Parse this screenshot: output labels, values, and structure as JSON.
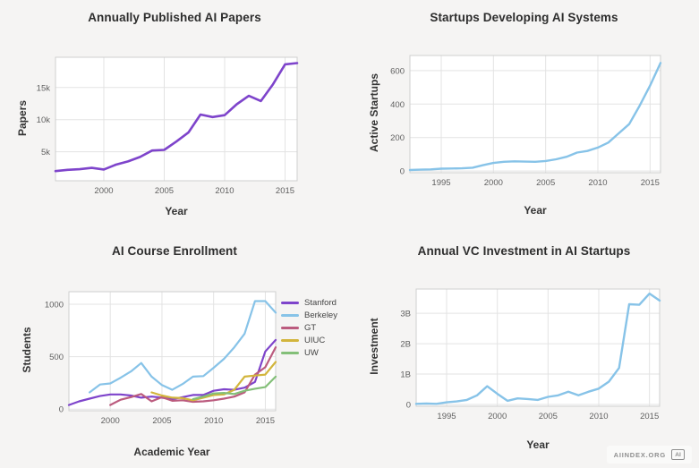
{
  "footer": {
    "watermark": "AIINDEX.ORG",
    "logo": "AI"
  },
  "chart_data": [
    {
      "id": "papers",
      "type": "line",
      "title": "Annually Published AI Papers",
      "xlabel": "Year",
      "ylabel": "Papers",
      "xlim": [
        1996,
        2016
      ],
      "ylim": [
        500,
        19700
      ],
      "grid": true,
      "legend": false,
      "xticks": [
        2000,
        2005,
        2010,
        2015
      ],
      "yticks": [
        5000,
        10000,
        15000
      ],
      "ytick_labels": [
        "5k",
        "10k",
        "15k"
      ],
      "series": [
        {
          "name": "AI Papers",
          "color": "#7e44cb",
          "x_start": 1996,
          "values": [
            2000,
            2200,
            2300,
            2500,
            2250,
            3000,
            3500,
            4200,
            5200,
            5300,
            6600,
            8000,
            10800,
            10400,
            10700,
            12400,
            13700,
            12900,
            15500,
            18600,
            18800
          ]
        }
      ]
    },
    {
      "id": "startups",
      "type": "line",
      "title": "Startups Developing AI Systems",
      "xlabel": "Year",
      "ylabel": "Active Startups",
      "xlim": [
        1992,
        2016
      ],
      "ylim": [
        -10,
        690
      ],
      "grid": true,
      "legend": false,
      "xticks": [
        1995,
        2000,
        2005,
        2010,
        2015
      ],
      "yticks": [
        0,
        200,
        400,
        600
      ],
      "ytick_labels": [
        "0",
        "200",
        "400",
        "600"
      ],
      "series": [
        {
          "name": "Active Startups",
          "color": "#87c3e8",
          "x_start": 1992,
          "values": [
            6,
            8,
            10,
            14,
            15,
            16,
            20,
            35,
            48,
            55,
            58,
            56,
            55,
            60,
            70,
            85,
            110,
            120,
            140,
            170,
            225,
            280,
            390,
            510,
            645
          ]
        }
      ]
    },
    {
      "id": "enrollment",
      "type": "line",
      "title": "AI Course Enrollment",
      "xlabel": "Academic Year",
      "ylabel": "Students",
      "xlim": [
        1996,
        2016
      ],
      "ylim": [
        -15,
        1120
      ],
      "grid": true,
      "legend": true,
      "legend_position": "right",
      "xticks": [
        2000,
        2005,
        2010,
        2015
      ],
      "yticks": [
        0,
        500,
        1000
      ],
      "ytick_labels": [
        "0",
        "500",
        "1000"
      ],
      "series": [
        {
          "name": "Stanford",
          "color": "#7e44cb",
          "x_start": 1996,
          "values": [
            40,
            75,
            100,
            125,
            140,
            140,
            130,
            110,
            120,
            110,
            95,
            115,
            135,
            135,
            175,
            190,
            185,
            205,
            260,
            550,
            660
          ]
        },
        {
          "name": "Berkeley",
          "color": "#87c3e8",
          "x_start": 1998,
          "values": [
            160,
            235,
            245,
            300,
            360,
            440,
            310,
            230,
            185,
            240,
            310,
            315,
            395,
            480,
            590,
            720,
            1030,
            1030,
            920
          ]
        },
        {
          "name": "GT",
          "color": "#bb5b7e",
          "x_start": 2000,
          "values": [
            40,
            90,
            115,
            145,
            75,
            115,
            80,
            85,
            70,
            75,
            85,
            100,
            120,
            160,
            330,
            400,
            590
          ]
        },
        {
          "name": "UIUC",
          "color": "#d2b53c",
          "x_start": 2004,
          "values": [
            160,
            130,
            110,
            105,
            85,
            110,
            135,
            140,
            185,
            310,
            320,
            330,
            450
          ]
        },
        {
          "name": "UW",
          "color": "#83bf78",
          "x_start": 2008,
          "values": [
            95,
            120,
            150,
            155,
            145,
            175,
            195,
            210,
            310
          ]
        }
      ]
    },
    {
      "id": "vc",
      "type": "line",
      "title": "Annual VC Investment in AI Startups",
      "xlabel": "Year",
      "ylabel": "Investment",
      "xlim": [
        1992,
        2016
      ],
      "ylim": [
        -0.06,
        3.8
      ],
      "grid": true,
      "legend": false,
      "xticks": [
        1995,
        2000,
        2005,
        2010,
        2015
      ],
      "yticks": [
        0,
        1,
        2,
        3
      ],
      "ytick_labels": [
        "0",
        "1B",
        "2B",
        "3B"
      ],
      "series": [
        {
          "name": "VC Investment",
          "color": "#87c3e8",
          "x_start": 1992,
          "values": [
            0.02,
            0.03,
            0.02,
            0.07,
            0.1,
            0.15,
            0.3,
            0.6,
            0.35,
            0.12,
            0.2,
            0.18,
            0.15,
            0.25,
            0.3,
            0.42,
            0.3,
            0.42,
            0.52,
            0.75,
            1.2,
            3.3,
            3.28,
            3.65,
            3.42
          ]
        }
      ]
    }
  ]
}
